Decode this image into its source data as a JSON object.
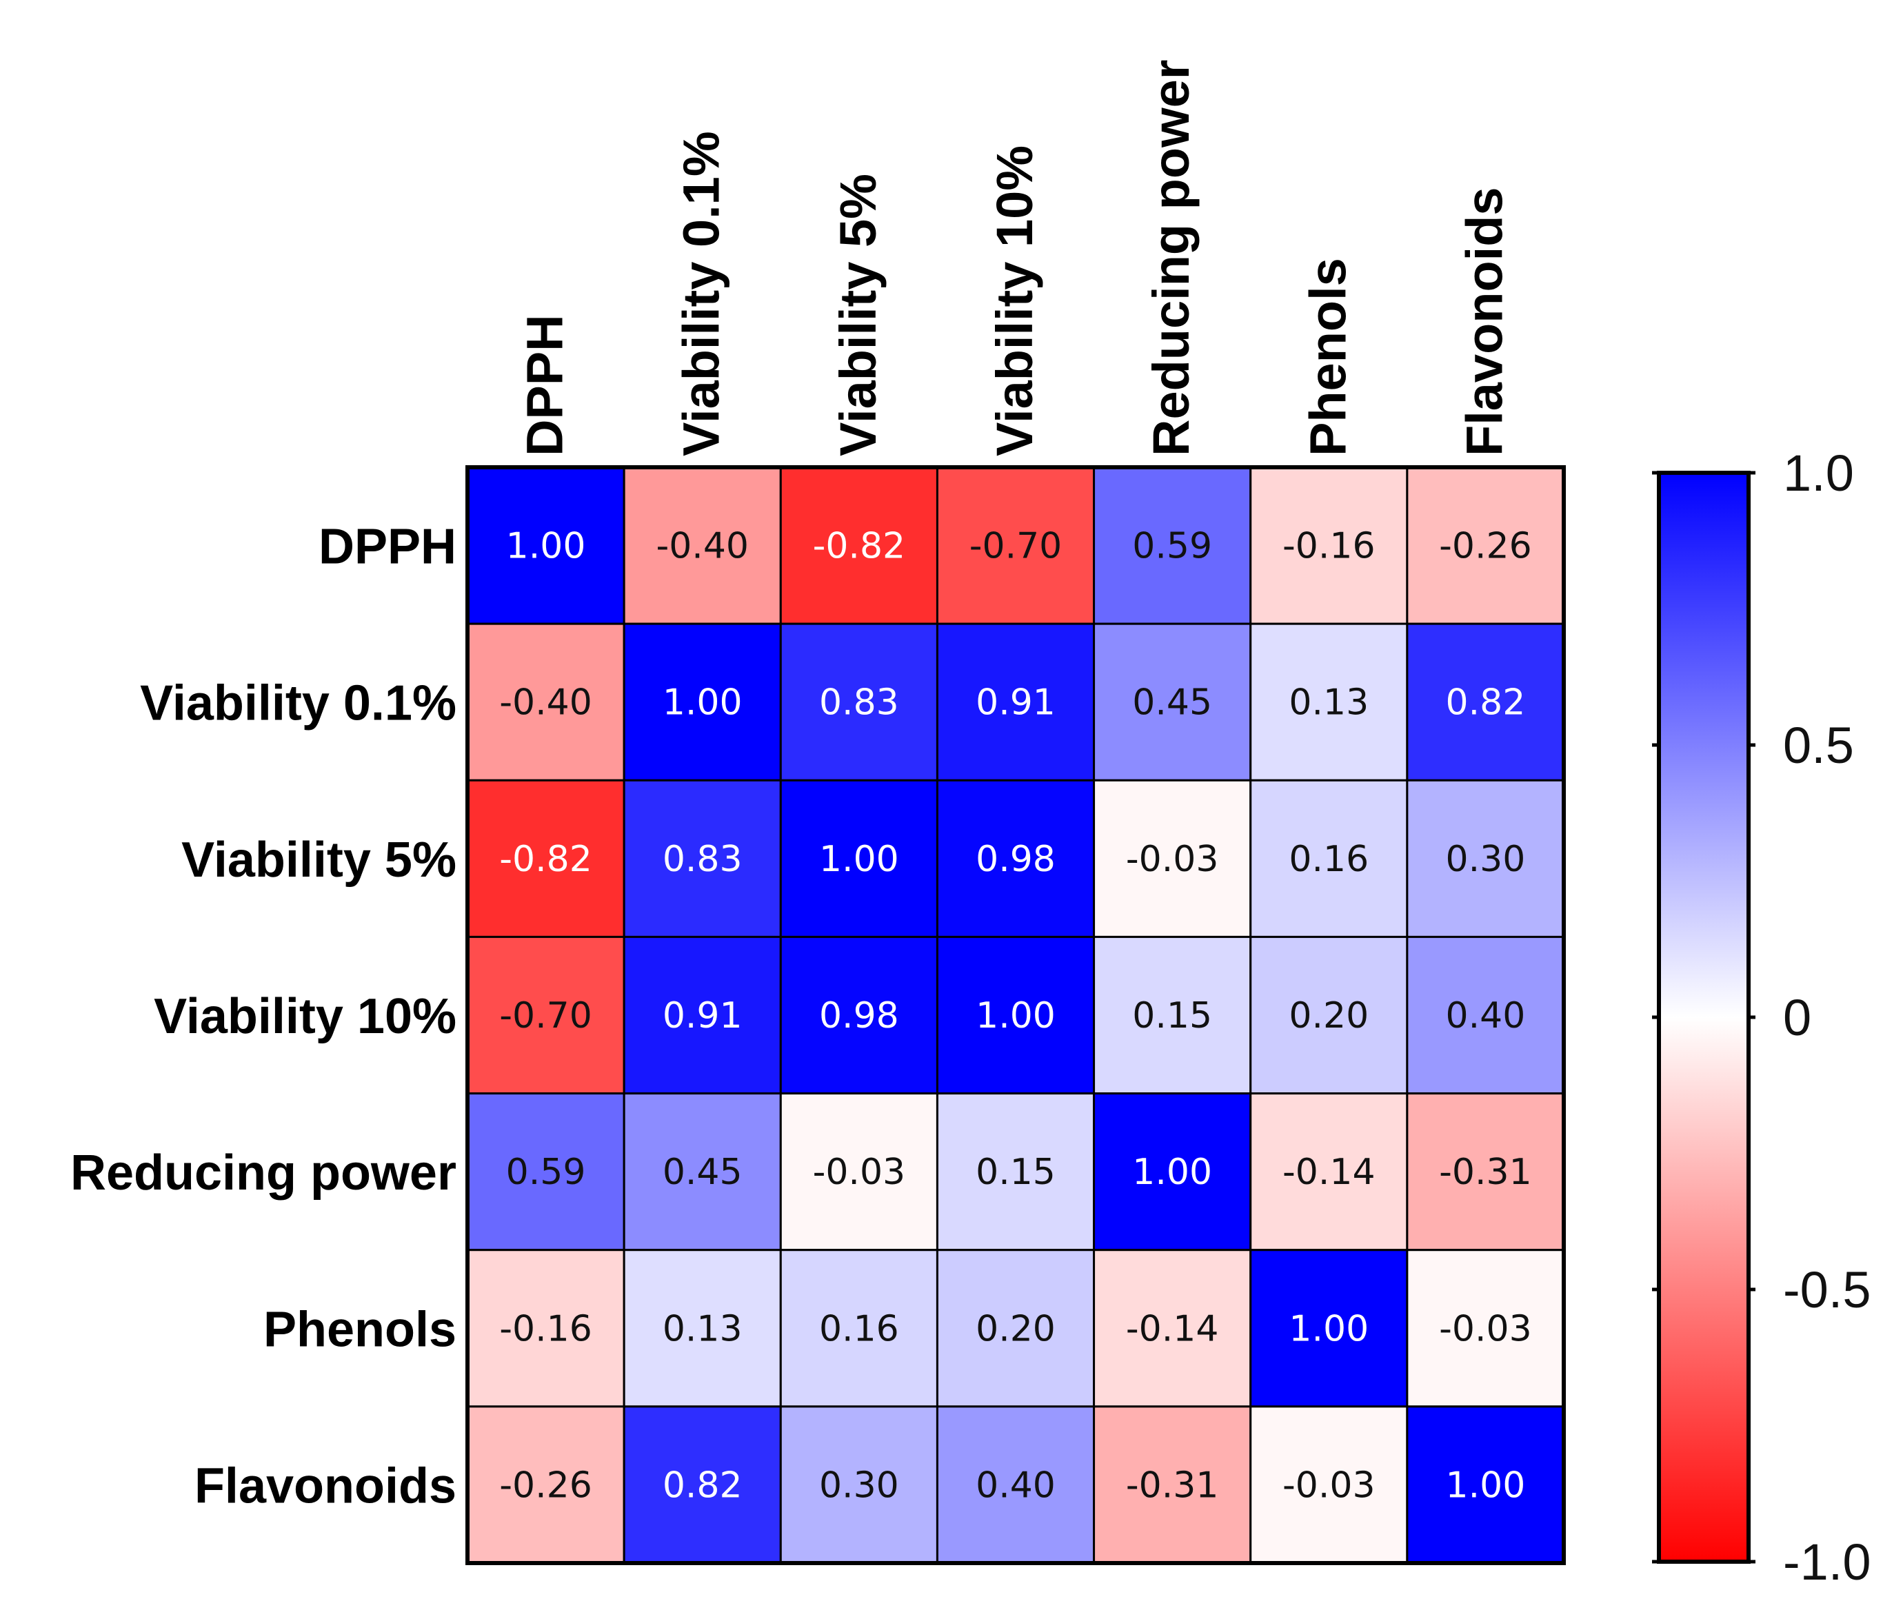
{
  "chart_data": {
    "type": "heatmap",
    "title": "",
    "variables": [
      "DPPH",
      "Viability 0.1%",
      "Viability 5%",
      "Viability 10%",
      "Reducing power",
      "Phenols",
      "Flavonoids"
    ],
    "matrix": [
      [
        1.0,
        -0.4,
        -0.82,
        -0.7,
        0.59,
        -0.16,
        -0.26
      ],
      [
        -0.4,
        1.0,
        0.83,
        0.91,
        0.45,
        0.13,
        0.82
      ],
      [
        -0.82,
        0.83,
        1.0,
        0.98,
        -0.03,
        0.16,
        0.3
      ],
      [
        -0.7,
        0.91,
        0.98,
        1.0,
        0.15,
        0.2,
        0.4
      ],
      [
        0.59,
        0.45,
        -0.03,
        0.15,
        1.0,
        -0.14,
        -0.31
      ],
      [
        -0.16,
        0.13,
        0.16,
        0.2,
        -0.14,
        1.0,
        -0.03
      ],
      [
        -0.26,
        0.82,
        0.3,
        0.4,
        -0.31,
        -0.03,
        1.0
      ]
    ],
    "value_range": [
      -1.0,
      1.0
    ],
    "colorbar": {
      "ticks": [
        "1.0",
        "0.5",
        "0",
        "-0.5",
        "-1.0"
      ],
      "tick_values": [
        1.0,
        0.5,
        0,
        -0.5,
        -1.0
      ]
    },
    "colors": {
      "positive": "#0000ff",
      "neutral": "#ffffff",
      "negative": "#ff0000"
    }
  }
}
